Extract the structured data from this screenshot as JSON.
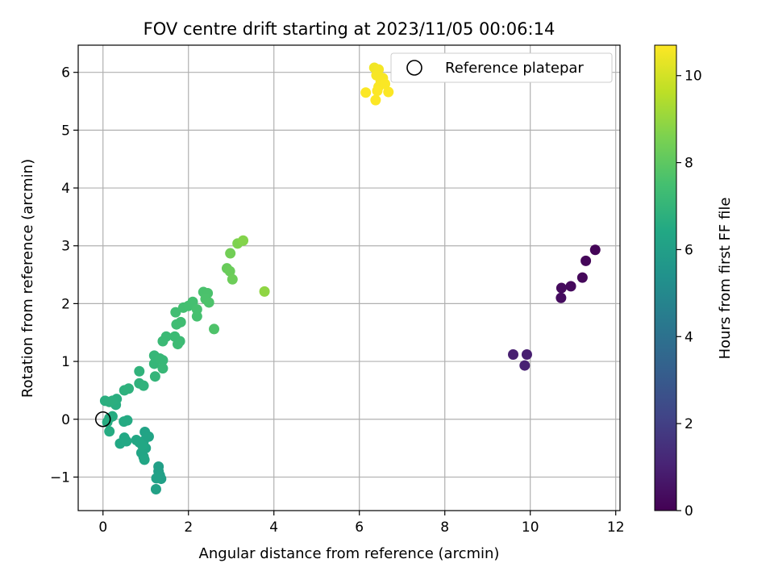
{
  "chart_data": {
    "type": "scatter",
    "title": "FOV centre drift starting at 2023/11/05 00:06:14",
    "xlabel": "Angular distance from reference (arcmin)",
    "ylabel": "Rotation from reference (arcmin)",
    "xlim": [
      -0.58,
      12.1
    ],
    "ylim": [
      -1.58,
      6.47
    ],
    "xticks": [
      0,
      2,
      4,
      6,
      8,
      10,
      12
    ],
    "yticks": [
      -1,
      0,
      1,
      2,
      3,
      4,
      5,
      6
    ],
    "grid": true,
    "legend": {
      "position": "top-right",
      "entries": [
        "Reference platepar"
      ]
    },
    "reference_point": {
      "x": 0,
      "y": 0,
      "marker": "open-circle"
    },
    "colorbar": {
      "label": "Hours from first FF file",
      "colormap": "viridis",
      "range": [
        0,
        10.7
      ],
      "ticks": [
        0,
        2,
        4,
        6,
        8,
        10
      ]
    },
    "points": [
      {
        "x": 11.52,
        "y": 2.93,
        "t": 0.1
      },
      {
        "x": 11.3,
        "y": 2.74,
        "t": 0.15
      },
      {
        "x": 11.22,
        "y": 2.45,
        "t": 0.2
      },
      {
        "x": 10.95,
        "y": 2.3,
        "t": 0.25
      },
      {
        "x": 10.73,
        "y": 2.27,
        "t": 0.3
      },
      {
        "x": 10.72,
        "y": 2.1,
        "t": 0.35
      },
      {
        "x": 9.92,
        "y": 1.12,
        "t": 0.9
      },
      {
        "x": 9.6,
        "y": 1.12,
        "t": 0.95
      },
      {
        "x": 9.87,
        "y": 0.93,
        "t": 1.0
      },
      {
        "x": 1.3,
        "y": -0.82,
        "t": 6.0
      },
      {
        "x": 1.3,
        "y": -0.9,
        "t": 6.02
      },
      {
        "x": 1.33,
        "y": -0.97,
        "t": 6.04
      },
      {
        "x": 1.36,
        "y": -1.03,
        "t": 6.06
      },
      {
        "x": 1.25,
        "y": -1.02,
        "t": 6.08
      },
      {
        "x": 1.24,
        "y": -1.21,
        "t": 6.1
      },
      {
        "x": 0.98,
        "y": -0.22,
        "t": 6.2
      },
      {
        "x": 1.07,
        "y": -0.3,
        "t": 6.22
      },
      {
        "x": 0.95,
        "y": -0.38,
        "t": 6.24
      },
      {
        "x": 1.0,
        "y": -0.5,
        "t": 6.26
      },
      {
        "x": 0.9,
        "y": -0.58,
        "t": 6.28
      },
      {
        "x": 0.95,
        "y": -0.65,
        "t": 6.3
      },
      {
        "x": 0.97,
        "y": -0.7,
        "t": 6.32
      },
      {
        "x": 0.85,
        "y": -0.4,
        "t": 6.34
      },
      {
        "x": 0.78,
        "y": -0.36,
        "t": 6.36
      },
      {
        "x": 0.92,
        "y": -0.45,
        "t": 6.38
      },
      {
        "x": 0.5,
        "y": -0.32,
        "t": 6.4
      },
      {
        "x": 0.4,
        "y": -0.42,
        "t": 6.42
      },
      {
        "x": 0.55,
        "y": -0.38,
        "t": 6.44
      },
      {
        "x": 0.57,
        "y": -0.02,
        "t": 6.5
      },
      {
        "x": 0.49,
        "y": -0.04,
        "t": 6.52
      },
      {
        "x": 0.15,
        "y": -0.21,
        "t": 6.55
      },
      {
        "x": 0.1,
        "y": -0.05,
        "t": 6.57
      },
      {
        "x": 0.22,
        "y": 0.05,
        "t": 6.59
      },
      {
        "x": 0.15,
        "y": 0.02,
        "t": 6.6
      },
      {
        "x": 0.3,
        "y": 0.25,
        "t": 6.65
      },
      {
        "x": 0.32,
        "y": 0.35,
        "t": 6.67
      },
      {
        "x": 0.22,
        "y": 0.32,
        "t": 6.69
      },
      {
        "x": 0.05,
        "y": 0.32,
        "t": 6.71
      },
      {
        "x": 0.15,
        "y": 0.3,
        "t": 6.72
      },
      {
        "x": 0.5,
        "y": 0.5,
        "t": 6.8
      },
      {
        "x": 0.6,
        "y": 0.53,
        "t": 6.82
      },
      {
        "x": 0.85,
        "y": 0.62,
        "t": 6.85
      },
      {
        "x": 0.95,
        "y": 0.58,
        "t": 6.87
      },
      {
        "x": 0.85,
        "y": 0.83,
        "t": 6.89
      },
      {
        "x": 1.22,
        "y": 0.74,
        "t": 7.0
      },
      {
        "x": 1.2,
        "y": 0.96,
        "t": 7.05
      },
      {
        "x": 1.2,
        "y": 1.1,
        "t": 7.08
      },
      {
        "x": 1.33,
        "y": 1.05,
        "t": 7.1
      },
      {
        "x": 1.4,
        "y": 1.02,
        "t": 7.12
      },
      {
        "x": 1.4,
        "y": 0.88,
        "t": 7.14
      },
      {
        "x": 1.4,
        "y": 1.35,
        "t": 7.2
      },
      {
        "x": 1.48,
        "y": 1.43,
        "t": 7.22
      },
      {
        "x": 1.68,
        "y": 1.43,
        "t": 7.25
      },
      {
        "x": 1.8,
        "y": 1.35,
        "t": 7.27
      },
      {
        "x": 1.75,
        "y": 1.3,
        "t": 7.29
      },
      {
        "x": 1.72,
        "y": 1.64,
        "t": 7.35
      },
      {
        "x": 1.82,
        "y": 1.68,
        "t": 7.37
      },
      {
        "x": 1.7,
        "y": 1.85,
        "t": 7.4
      },
      {
        "x": 1.88,
        "y": 1.93,
        "t": 7.45
      },
      {
        "x": 2.0,
        "y": 1.96,
        "t": 7.47
      },
      {
        "x": 2.1,
        "y": 2.03,
        "t": 7.5
      },
      {
        "x": 2.2,
        "y": 1.78,
        "t": 7.52
      },
      {
        "x": 2.2,
        "y": 1.9,
        "t": 7.54
      },
      {
        "x": 2.35,
        "y": 2.2,
        "t": 7.6
      },
      {
        "x": 2.45,
        "y": 2.18,
        "t": 7.62
      },
      {
        "x": 2.4,
        "y": 2.08,
        "t": 7.64
      },
      {
        "x": 2.48,
        "y": 2.02,
        "t": 7.66
      },
      {
        "x": 2.6,
        "y": 1.56,
        "t": 7.68
      },
      {
        "x": 2.9,
        "y": 2.61,
        "t": 8.2
      },
      {
        "x": 2.97,
        "y": 2.56,
        "t": 8.25
      },
      {
        "x": 3.03,
        "y": 2.42,
        "t": 8.3
      },
      {
        "x": 2.98,
        "y": 2.87,
        "t": 8.4
      },
      {
        "x": 3.15,
        "y": 3.04,
        "t": 8.6
      },
      {
        "x": 3.28,
        "y": 3.09,
        "t": 8.7
      },
      {
        "x": 3.78,
        "y": 2.21,
        "t": 8.9
      },
      {
        "x": 6.35,
        "y": 6.08,
        "t": 10.5
      },
      {
        "x": 6.45,
        "y": 6.05,
        "t": 10.55
      },
      {
        "x": 6.4,
        "y": 5.95,
        "t": 10.6
      },
      {
        "x": 6.55,
        "y": 5.9,
        "t": 10.6
      },
      {
        "x": 6.5,
        "y": 5.85,
        "t": 10.62
      },
      {
        "x": 6.45,
        "y": 5.75,
        "t": 10.64
      },
      {
        "x": 6.6,
        "y": 5.8,
        "t": 10.65
      },
      {
        "x": 6.15,
        "y": 5.65,
        "t": 10.66
      },
      {
        "x": 6.68,
        "y": 5.66,
        "t": 10.67
      },
      {
        "x": 6.38,
        "y": 5.52,
        "t": 10.68
      },
      {
        "x": 6.42,
        "y": 5.68,
        "t": 10.69
      }
    ]
  },
  "colors": {
    "axis": "#000000",
    "grid": "#b0b0b0",
    "legend_border": "#cccccc"
  }
}
